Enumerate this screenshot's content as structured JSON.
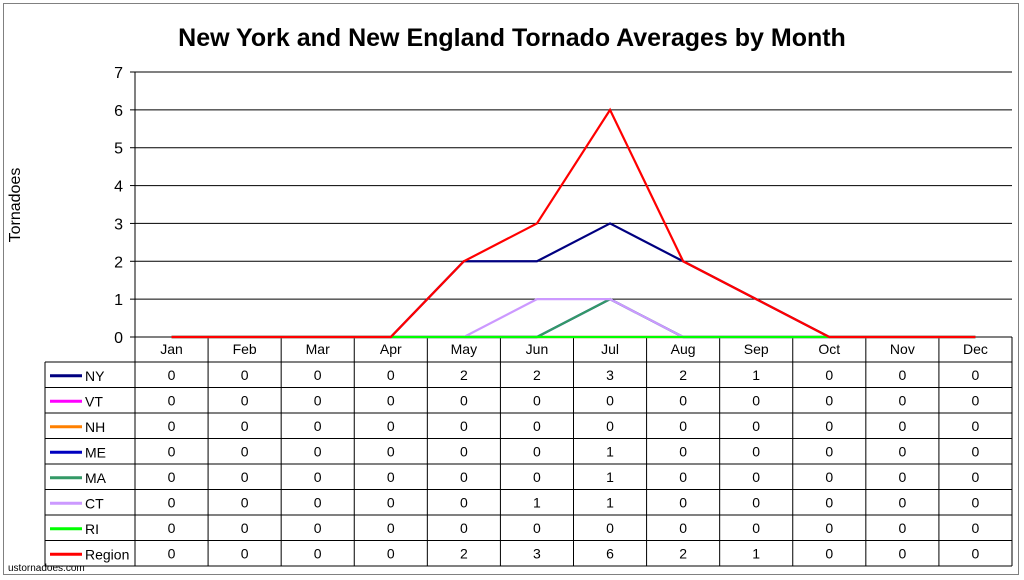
{
  "chart_data": {
    "type": "line",
    "title": "New York and New England Tornado Averages by Month",
    "ylabel": "Tornadoes",
    "xlabel": "",
    "ylim": [
      0,
      7
    ],
    "yticks": [
      0,
      1,
      2,
      3,
      4,
      5,
      6,
      7
    ],
    "grid": true,
    "legend": "data-table",
    "categories": [
      "Jan",
      "Feb",
      "Mar",
      "Apr",
      "May",
      "Jun",
      "Jul",
      "Aug",
      "Sep",
      "Oct",
      "Nov",
      "Dec"
    ],
    "series": [
      {
        "name": "NY",
        "color": "#000080",
        "values": [
          0,
          0,
          0,
          0,
          2,
          2,
          3,
          2,
          1,
          0,
          0,
          0
        ]
      },
      {
        "name": "VT",
        "color": "#ff00ff",
        "values": [
          0,
          0,
          0,
          0,
          0,
          0,
          0,
          0,
          0,
          0,
          0,
          0
        ]
      },
      {
        "name": "NH",
        "color": "#ff8000",
        "values": [
          0,
          0,
          0,
          0,
          0,
          0,
          0,
          0,
          0,
          0,
          0,
          0
        ]
      },
      {
        "name": "ME",
        "color": "#0000c0",
        "values": [
          0,
          0,
          0,
          0,
          0,
          0,
          1,
          0,
          0,
          0,
          0,
          0
        ]
      },
      {
        "name": "MA",
        "color": "#339966",
        "values": [
          0,
          0,
          0,
          0,
          0,
          0,
          1,
          0,
          0,
          0,
          0,
          0
        ]
      },
      {
        "name": "CT",
        "color": "#cc99ff",
        "values": [
          0,
          0,
          0,
          0,
          0,
          1,
          1,
          0,
          0,
          0,
          0,
          0
        ]
      },
      {
        "name": "RI",
        "color": "#00ff00",
        "values": [
          0,
          0,
          0,
          0,
          0,
          0,
          0,
          0,
          0,
          0,
          0,
          0
        ]
      },
      {
        "name": "Region",
        "color": "#ff0000",
        "values": [
          0,
          0,
          0,
          0,
          2,
          3,
          6,
          2,
          1,
          0,
          0,
          0
        ]
      }
    ]
  },
  "source": "ustornadoes.com"
}
